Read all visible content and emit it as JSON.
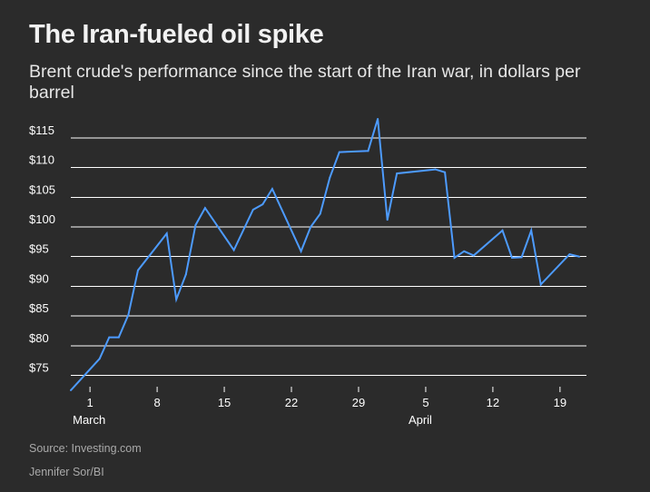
{
  "header": {
    "title": "The Iran-fueled oil spike",
    "subtitle": "Brent crude's performance since the start of the Iran war, in dollars per barrel"
  },
  "footer": {
    "source": "Source: Investing.com",
    "credit": "Jennifer Sor/BI"
  },
  "colors": {
    "background": "#2b2b2b",
    "line": "#4d9bff",
    "grid": "#ffffff",
    "text": "#ffffff"
  },
  "chart_data": {
    "type": "line",
    "title": "The Iran-fueled oil spike",
    "subtitle": "Brent crude's performance since the start of the Iran war, in dollars per barrel",
    "xlabel": "",
    "ylabel": "",
    "grid": true,
    "legend": "none",
    "y_ticks": [
      75,
      80,
      85,
      90,
      95,
      100,
      105,
      110,
      115
    ],
    "y_tick_labels": [
      "$75",
      "$80",
      "$85",
      "$90",
      "$95",
      "$100",
      "$105",
      "$110",
      "$115"
    ],
    "ylim": [
      72.5,
      118
    ],
    "x_axis": {
      "start_date": "2026-02-27",
      "end_date": "2026-04-21",
      "ticks": [
        {
          "date": "2026-03-01",
          "label": "1",
          "month_label": "March"
        },
        {
          "date": "2026-03-08",
          "label": "8",
          "month_label": ""
        },
        {
          "date": "2026-03-15",
          "label": "15",
          "month_label": ""
        },
        {
          "date": "2026-03-22",
          "label": "22",
          "month_label": ""
        },
        {
          "date": "2026-03-29",
          "label": "29",
          "month_label": ""
        },
        {
          "date": "2026-04-05",
          "label": "5",
          "month_label": "April"
        },
        {
          "date": "2026-04-12",
          "label": "12",
          "month_label": ""
        },
        {
          "date": "2026-04-19",
          "label": "19",
          "month_label": ""
        }
      ]
    },
    "series": [
      {
        "name": "",
        "points": [
          {
            "x": "2026-02-27",
            "y": 72.5
          },
          {
            "x": "2026-03-02",
            "y": 77.8
          },
          {
            "x": "2026-03-03",
            "y": 81.4
          },
          {
            "x": "2026-03-04",
            "y": 81.4
          },
          {
            "x": "2026-03-05",
            "y": 85.2
          },
          {
            "x": "2026-03-06",
            "y": 92.7
          },
          {
            "x": "2026-03-09",
            "y": 98.9
          },
          {
            "x": "2026-03-10",
            "y": 87.8
          },
          {
            "x": "2026-03-11",
            "y": 92.0
          },
          {
            "x": "2026-03-12",
            "y": 100.3
          },
          {
            "x": "2026-03-13",
            "y": 103.2
          },
          {
            "x": "2026-03-16",
            "y": 96.1
          },
          {
            "x": "2026-03-18",
            "y": 102.9
          },
          {
            "x": "2026-03-19",
            "y": 103.8
          },
          {
            "x": "2026-03-20",
            "y": 106.4
          },
          {
            "x": "2026-03-23",
            "y": 95.9
          },
          {
            "x": "2026-03-24",
            "y": 100.0
          },
          {
            "x": "2026-03-25",
            "y": 102.2
          },
          {
            "x": "2026-03-26",
            "y": 108.3
          },
          {
            "x": "2026-03-27",
            "y": 112.6
          },
          {
            "x": "2026-03-30",
            "y": 112.8
          },
          {
            "x": "2026-03-31",
            "y": 118.2
          },
          {
            "x": "2026-04-01",
            "y": 101.2
          },
          {
            "x": "2026-04-02",
            "y": 109.0
          },
          {
            "x": "2026-04-06",
            "y": 109.7
          },
          {
            "x": "2026-04-07",
            "y": 109.2
          },
          {
            "x": "2026-04-08",
            "y": 94.8
          },
          {
            "x": "2026-04-09",
            "y": 95.9
          },
          {
            "x": "2026-04-10",
            "y": 95.2
          },
          {
            "x": "2026-04-13",
            "y": 99.4
          },
          {
            "x": "2026-04-14",
            "y": 94.8
          },
          {
            "x": "2026-04-15",
            "y": 94.9
          },
          {
            "x": "2026-04-16",
            "y": 99.4
          },
          {
            "x": "2026-04-17",
            "y": 90.3
          },
          {
            "x": "2026-04-20",
            "y": 95.4
          },
          {
            "x": "2026-04-21",
            "y": 95.0
          }
        ]
      }
    ]
  }
}
